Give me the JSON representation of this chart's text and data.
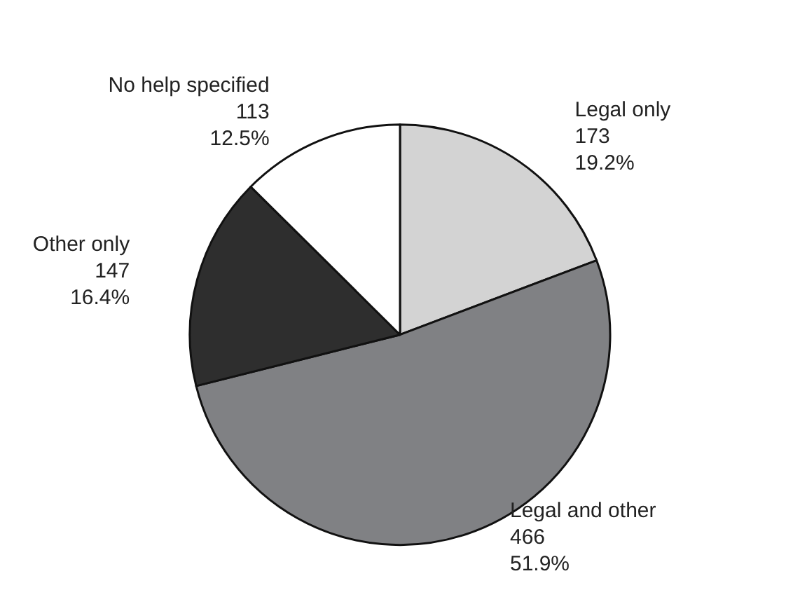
{
  "chart_data": {
    "type": "pie",
    "categories": [
      "Legal only",
      "Legal and other",
      "Other only",
      "No help specified"
    ],
    "values": [
      173,
      466,
      147,
      113
    ],
    "value_labels": [
      "173\n19.2%",
      "466\n51.9%",
      "147\n16.4%",
      "113\n12.5%"
    ],
    "colors": [
      "#d3d3d3",
      "#808184",
      "#2e2e2e",
      "#ffffff"
    ],
    "legend": false
  }
}
